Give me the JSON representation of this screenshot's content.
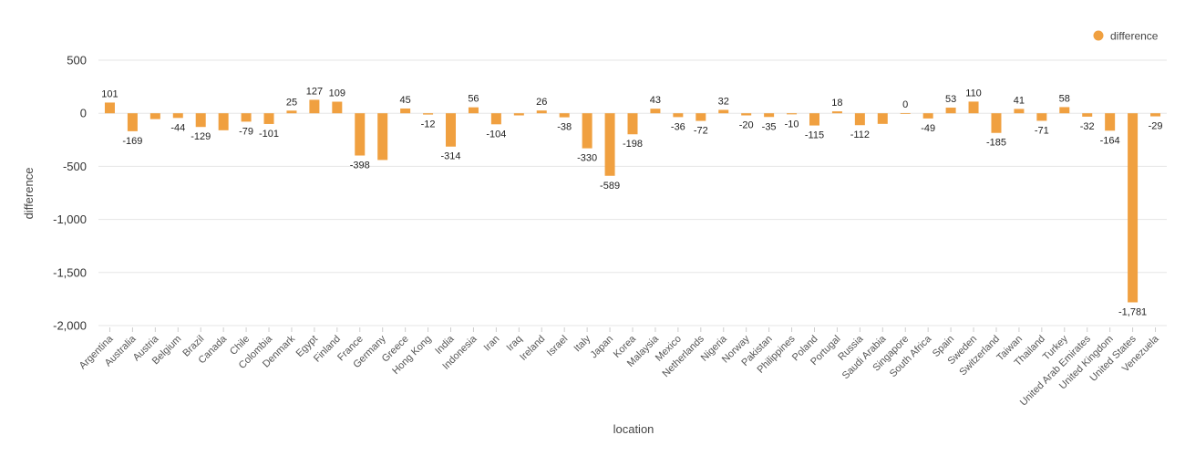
{
  "chart_data": {
    "type": "bar",
    "title": "",
    "xlabel": "location",
    "ylabel": "difference",
    "ylim": [
      -2000,
      500
    ],
    "yticks": [
      500,
      0,
      -500,
      -1000,
      -1500,
      -2000
    ],
    "ytick_labels": [
      "500",
      "0",
      "-500",
      "-1,000",
      "-1,500",
      "-2,000"
    ],
    "grid": true,
    "legend_position": "top-right",
    "bar_color": "#F0A040",
    "series": [
      {
        "name": "difference",
        "values": [
          101,
          -169,
          -55,
          -44,
          -129,
          -160,
          -79,
          -101,
          25,
          127,
          109,
          -398,
          -440,
          45,
          -12,
          -314,
          56,
          -104,
          -20,
          26,
          -38,
          -330,
          -589,
          -198,
          43,
          -36,
          -72,
          32,
          -20,
          -35,
          -10,
          -115,
          18,
          -112,
          -100,
          0,
          -49,
          53,
          110,
          -185,
          41,
          -71,
          58,
          -32,
          -164,
          -1781,
          -29
        ],
        "labels": [
          "101",
          "-169",
          "",
          "-44",
          "-129",
          "",
          "-79",
          "-101",
          "25",
          "127",
          "109",
          "-398",
          "",
          "45",
          "-12",
          "-314",
          "56",
          "-104",
          "",
          "26",
          "-38",
          "-330",
          "-589",
          "-198",
          "43",
          "-36",
          "-72",
          "32",
          "-20",
          "-35",
          "-10",
          "-115",
          "18",
          "-112",
          "",
          "0",
          "-49",
          "53",
          "110",
          "-185",
          "41",
          "-71",
          "58",
          "-32",
          "-164",
          "-1,781",
          "-29"
        ]
      }
    ],
    "categories": [
      "Argentina",
      "Australia",
      "Austria",
      "Belgium",
      "Brazil",
      "Canada",
      "Chile",
      "Colombia",
      "Denmark",
      "Egypt",
      "Finland",
      "France",
      "Germany",
      "Greece",
      "Hong Kong",
      "India",
      "Indonesia",
      "Iran",
      "Iraq",
      "Ireland",
      "Israel",
      "Italy",
      "Japan",
      "Korea",
      "Malaysia",
      "Mexico",
      "Netherlands",
      "Nigeria",
      "Norway",
      "Pakistan",
      "Philippines",
      "Poland",
      "Portugal",
      "Russia",
      "Saudi Arabia",
      "Singapore",
      "South Africa",
      "Spain",
      "Sweden",
      "Switzerland",
      "Taiwan",
      "Thailand",
      "Turkey",
      "United Arab Emirates",
      "United Kingdom",
      "United States",
      "Venezuela"
    ]
  }
}
